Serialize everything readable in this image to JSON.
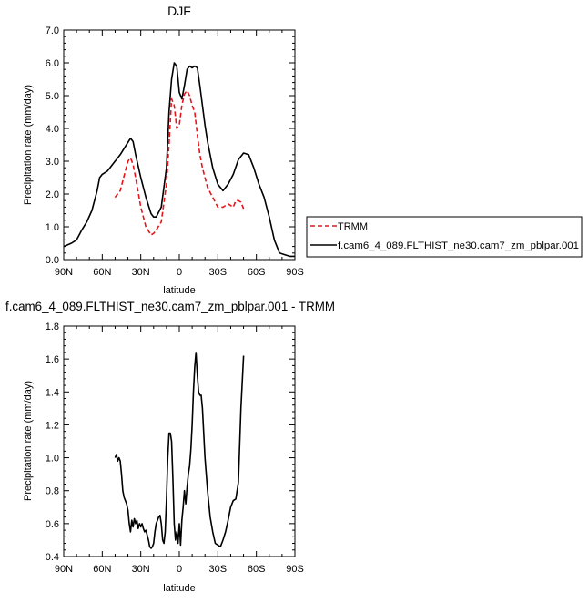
{
  "chart_data": [
    {
      "type": "line",
      "title": "DJF",
      "xlabel": "latitude",
      "ylabel": "Precipitation rate (mm/day)",
      "xlim": [
        90,
        -90
      ],
      "ylim": [
        0,
        7
      ],
      "xticks": [
        {
          "value": 90,
          "label": "90N"
        },
        {
          "value": 60,
          "label": "60N"
        },
        {
          "value": 30,
          "label": "30N"
        },
        {
          "value": 0,
          "label": "0"
        },
        {
          "value": -30,
          "label": "30S"
        },
        {
          "value": -60,
          "label": "60S"
        },
        {
          "value": -90,
          "label": "90S"
        }
      ],
      "yticks": [
        {
          "value": 0,
          "label": "0.0"
        },
        {
          "value": 1,
          "label": "1.0"
        },
        {
          "value": 2,
          "label": "2.0"
        },
        {
          "value": 3,
          "label": "3.0"
        },
        {
          "value": 4,
          "label": "4.0"
        },
        {
          "value": 5,
          "label": "5.0"
        },
        {
          "value": 6,
          "label": "6.0"
        },
        {
          "value": 7,
          "label": "7.0"
        }
      ],
      "series": [
        {
          "name": "TRMM",
          "color": "#e8141c",
          "dash": "dashed",
          "x": [
            50,
            46,
            42,
            40,
            38,
            36,
            34,
            30,
            26,
            22,
            20,
            18,
            14,
            10,
            8,
            6,
            4,
            2,
            0,
            -2,
            -4,
            -6,
            -8,
            -10,
            -12,
            -14,
            -16,
            -18,
            -20,
            -22,
            -26,
            -30,
            -34,
            -38,
            -42,
            -44,
            -46,
            -48,
            -50
          ],
          "y": [
            1.9,
            2.1,
            2.7,
            3.0,
            3.1,
            2.9,
            2.5,
            1.6,
            1.0,
            0.75,
            0.8,
            0.9,
            1.15,
            2.3,
            3.5,
            4.9,
            4.7,
            4.0,
            4.1,
            4.7,
            5.05,
            5.15,
            5.0,
            4.7,
            4.5,
            3.8,
            3.2,
            2.8,
            2.5,
            2.2,
            1.9,
            1.6,
            1.6,
            1.7,
            1.6,
            1.8,
            1.8,
            1.75,
            1.55
          ]
        },
        {
          "name": "f.cam6_4_089.FLTHIST_ne30.cam7_zm_pblpar.001",
          "color": "#000000",
          "dash": "solid",
          "x": [
            90,
            84,
            80,
            76,
            72,
            68,
            64,
            62,
            60,
            56,
            54,
            50,
            46,
            42,
            38,
            36,
            34,
            30,
            26,
            22,
            20,
            18,
            14,
            10,
            8,
            6,
            4,
            2,
            0,
            -2,
            -4,
            -6,
            -8,
            -10,
            -12,
            -14,
            -16,
            -18,
            -20,
            -22,
            -26,
            -30,
            -34,
            -38,
            -42,
            -46,
            -50,
            -54,
            -58,
            -62,
            -66,
            -70,
            -74,
            -78,
            -82,
            -86,
            -90
          ],
          "y": [
            0.4,
            0.5,
            0.6,
            0.9,
            1.15,
            1.5,
            2.1,
            2.5,
            2.6,
            2.7,
            2.8,
            3.0,
            3.2,
            3.45,
            3.7,
            3.6,
            3.2,
            2.5,
            1.9,
            1.4,
            1.3,
            1.3,
            1.6,
            2.8,
            4.5,
            5.5,
            6.0,
            5.9,
            5.1,
            4.9,
            5.3,
            5.8,
            5.9,
            5.85,
            5.9,
            5.85,
            5.3,
            4.7,
            4.1,
            3.6,
            2.8,
            2.3,
            2.1,
            2.3,
            2.6,
            3.05,
            3.25,
            3.2,
            2.8,
            2.3,
            1.9,
            1.3,
            0.6,
            0.2,
            0.15,
            0.1,
            0.1
          ]
        }
      ],
      "legend": {
        "placement": "right",
        "entries": [
          {
            "label": "TRMM"
          },
          {
            "label": "f.cam6_4_089.FLTHIST_ne30.cam7_zm_pblpar.001"
          }
        ]
      }
    },
    {
      "type": "line",
      "title": "f.cam6_4_089.FLTHIST_ne30.cam7_zm_pblpar.001 - TRMM",
      "xlabel": "latitude",
      "ylabel": "Precipitation rate (mm/day)",
      "xlim": [
        90,
        -90
      ],
      "ylim": [
        0.4,
        1.8
      ],
      "xticks": [
        {
          "value": 90,
          "label": "90N"
        },
        {
          "value": 60,
          "label": "60N"
        },
        {
          "value": 30,
          "label": "30N"
        },
        {
          "value": 0,
          "label": "0"
        },
        {
          "value": -30,
          "label": "30S"
        },
        {
          "value": -60,
          "label": "60S"
        },
        {
          "value": -90,
          "label": "90S"
        }
      ],
      "yticks": [
        {
          "value": 0.4,
          "label": "0.4"
        },
        {
          "value": 0.6,
          "label": "0.6"
        },
        {
          "value": 0.8,
          "label": "0.8"
        },
        {
          "value": 1.0,
          "label": "1.0"
        },
        {
          "value": 1.2,
          "label": "1.2"
        },
        {
          "value": 1.4,
          "label": "1.4"
        },
        {
          "value": 1.6,
          "label": "1.6"
        },
        {
          "value": 1.8,
          "label": "1.8"
        }
      ],
      "series": [
        {
          "color": "#000000",
          "dash": "solid",
          "x": [
            50,
            49,
            48,
            47,
            46,
            45,
            44,
            43,
            42,
            41,
            40,
            39,
            38,
            37,
            36,
            35,
            34,
            33,
            32,
            31,
            30,
            29,
            28,
            27,
            26,
            25,
            24,
            23,
            22,
            21,
            20,
            19,
            18,
            17,
            16,
            15,
            14,
            13,
            12,
            11,
            10,
            9,
            8,
            7,
            6,
            5,
            4,
            3,
            2,
            1,
            0,
            -1,
            -2,
            -3,
            -4,
            -5,
            -6,
            -7,
            -8,
            -9,
            -10,
            -11,
            -12,
            -13,
            -14,
            -15,
            -16,
            -17,
            -18,
            -19,
            -20,
            -22,
            -24,
            -26,
            -28,
            -30,
            -32,
            -34,
            -36,
            -38,
            -40,
            -42,
            -44,
            -46,
            -48,
            -50
          ],
          "y": [
            1.0,
            1.02,
            0.98,
            1.0,
            0.98,
            0.9,
            0.8,
            0.76,
            0.74,
            0.72,
            0.68,
            0.6,
            0.55,
            0.62,
            0.58,
            0.63,
            0.6,
            0.62,
            0.57,
            0.6,
            0.58,
            0.6,
            0.57,
            0.55,
            0.56,
            0.53,
            0.5,
            0.46,
            0.45,
            0.46,
            0.48,
            0.55,
            0.6,
            0.62,
            0.64,
            0.65,
            0.6,
            0.5,
            0.48,
            0.55,
            0.75,
            1.0,
            1.15,
            1.15,
            1.1,
            0.88,
            0.6,
            0.5,
            0.55,
            0.48,
            0.6,
            0.47,
            0.62,
            0.7,
            0.8,
            0.72,
            0.82,
            0.9,
            0.95,
            1.05,
            1.2,
            1.4,
            1.55,
            1.64,
            1.5,
            1.4,
            1.38,
            1.38,
            1.3,
            1.15,
            1.0,
            0.8,
            0.64,
            0.55,
            0.48,
            0.47,
            0.46,
            0.5,
            0.55,
            0.62,
            0.7,
            0.74,
            0.75,
            0.85,
            1.3,
            1.62
          ]
        }
      ]
    }
  ]
}
